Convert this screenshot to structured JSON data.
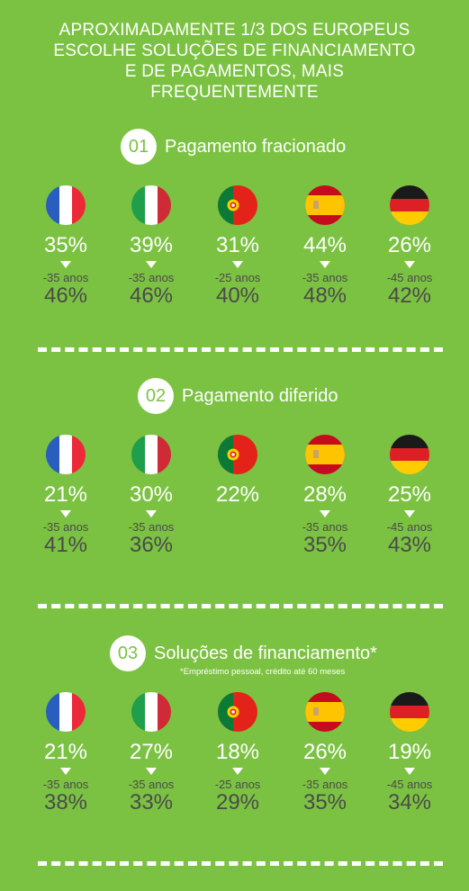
{
  "headline": [
    "APROXIMADAMENTE 1/3 DOS EUROPEUS",
    "ESCOLHE SOLUÇÕES DE FINANCIAMENTO",
    "E DE PAGAMENTOS, MAIS",
    "FREQUENTEMENTE"
  ],
  "colors": {
    "background": "#7cc242",
    "text_light": "#ffffff",
    "text_dark": "#4a4a4a"
  },
  "countries": [
    "France",
    "Italy",
    "Portugal",
    "Spain",
    "Germany"
  ],
  "sections": [
    {
      "number": "01",
      "title": "Pagamento fracionado",
      "footnote": "",
      "stats": [
        {
          "main": "35%",
          "age": "-35 anos",
          "sub": "46%"
        },
        {
          "main": "39%",
          "age": "-35 anos",
          "sub": "46%"
        },
        {
          "main": "31%",
          "age": "-25 anos",
          "sub": "40%"
        },
        {
          "main": "44%",
          "age": "-35 anos",
          "sub": "48%"
        },
        {
          "main": "26%",
          "age": "-45 anos",
          "sub": "42%"
        }
      ]
    },
    {
      "number": "02",
      "title": "Pagamento diferido",
      "footnote": "",
      "stats": [
        {
          "main": "21%",
          "age": "-35 anos",
          "sub": "41%"
        },
        {
          "main": "30%",
          "age": "-35 anos",
          "sub": "36%"
        },
        {
          "main": "22%",
          "age": "",
          "sub": ""
        },
        {
          "main": "28%",
          "age": "-35 anos",
          "sub": "35%"
        },
        {
          "main": "25%",
          "age": "-45 anos",
          "sub": "43%"
        }
      ]
    },
    {
      "number": "03",
      "title": "Soluções de financiamento*",
      "footnote": "*Empréstimo pessoal, crédito até 60 meses",
      "stats": [
        {
          "main": "21%",
          "age": "-35 anos",
          "sub": "38%"
        },
        {
          "main": "27%",
          "age": "-35 anos",
          "sub": "33%"
        },
        {
          "main": "18%",
          "age": "-25 anos",
          "sub": "29%"
        },
        {
          "main": "26%",
          "age": "-35 anos",
          "sub": "35%"
        },
        {
          "main": "19%",
          "age": "-45 anos",
          "sub": "34%"
        }
      ]
    }
  ]
}
